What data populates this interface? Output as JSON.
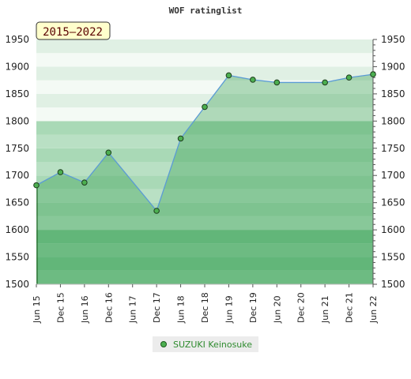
{
  "chart_data": {
    "type": "area",
    "title": "WOF ratinglist",
    "badge": "2015–2022",
    "x_ticks": [
      "Jun 15",
      "Dec 15",
      "Jun 16",
      "Dec 16",
      "Jun 17",
      "Dec 17",
      "Jun 18",
      "Dec 18",
      "Jun 19",
      "Dec 19",
      "Jun 20",
      "Dec 20",
      "Jun 21",
      "Dec 21",
      "Jun 22"
    ],
    "ylim": [
      1500,
      1950
    ],
    "y_ticks": [
      1500,
      1550,
      1600,
      1650,
      1700,
      1750,
      1800,
      1850,
      1900,
      1950
    ],
    "grid": true,
    "legend_position": "bottom",
    "series": [
      {
        "name": "SUZUKI Keinosuke",
        "color": "#4caf50",
        "points": [
          {
            "x": "Jun 15",
            "y": 1682
          },
          {
            "x": "Dec 15",
            "y": 1706
          },
          {
            "x": "Jun 16",
            "y": 1687
          },
          {
            "x": "Dec 16",
            "y": 1742
          },
          {
            "x": "Dec 17",
            "y": 1635
          },
          {
            "x": "Jun 18",
            "y": 1768
          },
          {
            "x": "Dec 18",
            "y": 1826
          },
          {
            "x": "Jun 19",
            "y": 1884
          },
          {
            "x": "Dec 19",
            "y": 1876
          },
          {
            "x": "Jun 20",
            "y": 1871
          },
          {
            "x": "Jun 21",
            "y": 1871
          },
          {
            "x": "Dec 21",
            "y": 1880
          },
          {
            "x": "Jun 22",
            "y": 1886
          }
        ]
      }
    ]
  }
}
